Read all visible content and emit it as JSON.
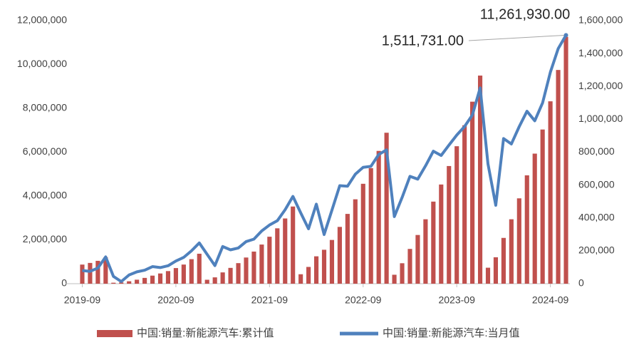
{
  "chart_data": {
    "type": "bar_line",
    "categories": [
      "2019-09",
      null,
      null,
      null,
      null,
      null,
      null,
      null,
      null,
      null,
      null,
      null,
      "2020-09",
      null,
      null,
      null,
      null,
      null,
      null,
      null,
      null,
      null,
      null,
      null,
      "2021-09",
      null,
      null,
      null,
      null,
      null,
      null,
      null,
      null,
      null,
      null,
      null,
      "2022-09",
      null,
      null,
      null,
      null,
      null,
      null,
      null,
      null,
      null,
      null,
      null,
      "2023-09",
      null,
      null,
      null,
      null,
      null,
      null,
      null,
      null,
      null,
      null,
      null,
      "2024-09",
      null,
      null
    ],
    "series": [
      {
        "name": "中国:销量:新能源汽车:累计值",
        "type": "bar",
        "color": "#c0504d",
        "values": [
          872000,
          947000,
          1043000,
          1206000,
          44000,
          57000,
          110000,
          182000,
          264000,
          368000,
          466000,
          575000,
          713000,
          873000,
          1119000,
          1367000,
          179000,
          289000,
          515000,
          721000,
          938000,
          1194000,
          1465000,
          1786000,
          2143000,
          2526000,
          2976000,
          3521000,
          431000,
          765000,
          1249000,
          1548000,
          1995000,
          2591000,
          3184000,
          3850000,
          4558000,
          5272000,
          6058000,
          6887000,
          408000,
          933000,
          1586000,
          2222000,
          2939000,
          3745000,
          4525000,
          5368000,
          6272000,
          7228000,
          8304000,
          9495000,
          729000,
          1206000,
          2089000,
          2939000,
          3894000,
          4943000,
          5934000,
          7034000,
          8321000,
          9751000,
          11261930
        ],
        "value_labels": [
          null,
          null,
          null,
          null,
          null,
          null,
          null,
          null,
          null,
          null,
          null,
          null,
          null,
          null,
          null,
          null,
          null,
          null,
          null,
          null,
          null,
          null,
          null,
          null,
          null,
          null,
          null,
          null,
          null,
          null,
          null,
          null,
          null,
          null,
          null,
          null,
          null,
          null,
          null,
          null,
          null,
          null,
          null,
          null,
          null,
          null,
          null,
          null,
          null,
          null,
          null,
          null,
          null,
          null,
          null,
          null,
          null,
          null,
          null,
          null,
          null,
          null,
          "11,261,930.00"
        ]
      },
      {
        "name": "中国:销量:新能源汽车:当月值",
        "type": "line",
        "color": "#4f81bd",
        "axis": "y2",
        "values": [
          80000,
          75000,
          95000,
          163000,
          44000,
          13000,
          53000,
          72000,
          82000,
          104000,
          98000,
          109000,
          138000,
          160000,
          200000,
          248000,
          179000,
          110000,
          226000,
          206000,
          217000,
          256000,
          271000,
          321000,
          357000,
          383000,
          450000,
          531000,
          431000,
          334000,
          484000,
          299000,
          447000,
          596000,
          593000,
          666000,
          708000,
          714000,
          786000,
          814000,
          408000,
          525000,
          653000,
          636000,
          717000,
          806000,
          780000,
          843000,
          904000,
          956000,
          1026000,
          1191000,
          729000,
          477000,
          883000,
          850000,
          955000,
          1049000,
          991000,
          1100000,
          1287000,
          1430000,
          1511731
        ],
        "value_labels": [
          null,
          null,
          null,
          null,
          null,
          null,
          null,
          null,
          null,
          null,
          null,
          null,
          null,
          null,
          null,
          null,
          null,
          null,
          null,
          null,
          null,
          null,
          null,
          null,
          null,
          null,
          null,
          null,
          null,
          null,
          null,
          null,
          null,
          null,
          null,
          null,
          null,
          null,
          null,
          null,
          null,
          null,
          null,
          null,
          null,
          null,
          null,
          null,
          null,
          null,
          null,
          null,
          null,
          null,
          null,
          null,
          null,
          null,
          null,
          null,
          null,
          null,
          "1,511,731.00"
        ]
      }
    ],
    "ylim": [
      0,
      12000000
    ],
    "yticks": [
      0,
      {
        "value": 2000000,
        "label": "2,000,000"
      },
      {
        "value": 4000000,
        "label": "4,000,000"
      },
      {
        "value": 6000000,
        "label": "6,000,000"
      },
      {
        "value": 8000000,
        "label": "8,000,000"
      },
      {
        "value": 10000000,
        "label": "10,000,000"
      },
      {
        "value": 12000000,
        "label": "12,000,000"
      }
    ],
    "y2lim": [
      0,
      1600000
    ],
    "y2ticks": [
      0,
      {
        "value": 200000,
        "label": "200,000"
      },
      {
        "value": 400000,
        "label": "400,000"
      },
      {
        "value": 600000,
        "label": "600,000"
      },
      {
        "value": 800000,
        "label": "800,000"
      },
      {
        "value": 1000000,
        "label": "1,000,000"
      },
      {
        "value": 1200000,
        "label": "1,200,000"
      },
      {
        "value": 1400000,
        "label": "1,400,000"
      },
      {
        "value": 1600000,
        "label": "1,600,000"
      }
    ],
    "legend": "bottom"
  }
}
